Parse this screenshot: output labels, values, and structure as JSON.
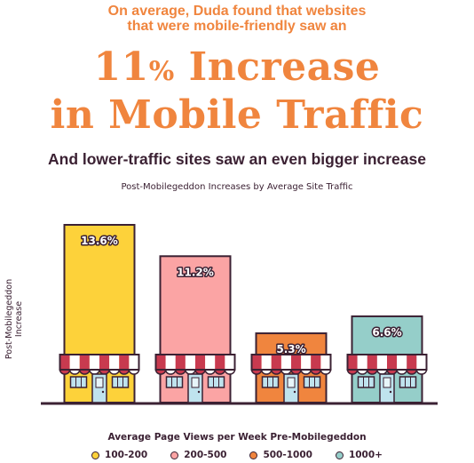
{
  "header": {
    "intro_line1": "On average, Duda found that websites",
    "intro_line2": "that were mobile-friendly saw an",
    "headline_number": "11",
    "headline_pct": "%",
    "headline_line1_rest": " Increase",
    "headline_line2": "in Mobile Traffic",
    "subheadline": "And lower-traffic sites saw an even bigger increase"
  },
  "colors": {
    "ink": "#3b2133",
    "orange": "#f0853e",
    "awning_red": "#c83a4f"
  },
  "chart_data": {
    "type": "bar",
    "title": "Post-Mobilegeddon Increases by Average Site Traffic",
    "xlabel": "Average Page Views per Week Pre-Mobilegeddon",
    "ylabel": "Post-Mobilegeddon Increase",
    "categories": [
      "100-200",
      "200-500",
      "500-1000",
      "1000+"
    ],
    "values": [
      13.6,
      11.2,
      5.3,
      6.6
    ],
    "data_labels": [
      "13.6%",
      "11.2%",
      "5.3%",
      "6.6%"
    ],
    "colors": [
      "#fdd23a",
      "#fba4a4",
      "#f0853e",
      "#95cec9"
    ],
    "grid": false,
    "legend_position": "bottom"
  }
}
